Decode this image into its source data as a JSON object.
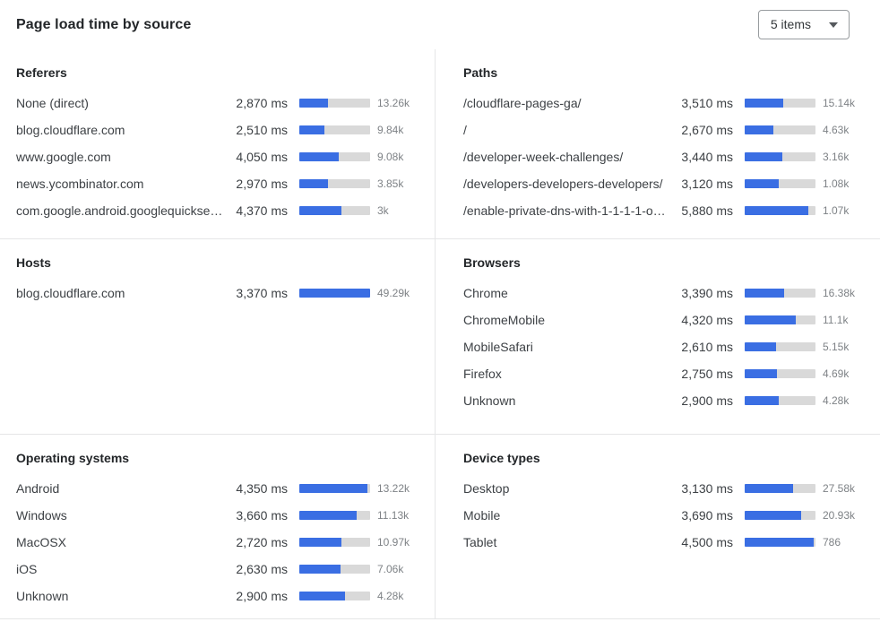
{
  "header": {
    "title": "Page load time by source",
    "items_selector": {
      "value": "5 items"
    }
  },
  "colors": {
    "bar_fill": "#3a6ee3",
    "bar_track": "#d9d9d9"
  },
  "panels": [
    {
      "id": "referers",
      "title": "Referers",
      "rows": [
        {
          "label": "None (direct)",
          "time": "2,870 ms",
          "count": "13.26k",
          "bar_pct": 40
        },
        {
          "label": "blog.cloudflare.com",
          "time": "2,510 ms",
          "count": "9.84k",
          "bar_pct": 35
        },
        {
          "label": "www.google.com",
          "time": "4,050 ms",
          "count": "9.08k",
          "bar_pct": 56
        },
        {
          "label": "news.ycombinator.com",
          "time": "2,970 ms",
          "count": "3.85k",
          "bar_pct": 41
        },
        {
          "label": "com.google.android.googlequicksearc...",
          "time": "4,370 ms",
          "count": "3k",
          "bar_pct": 60
        }
      ]
    },
    {
      "id": "paths",
      "title": "Paths",
      "rows": [
        {
          "label": "/cloudflare-pages-ga/",
          "time": "3,510 ms",
          "count": "15.14k",
          "bar_pct": 54
        },
        {
          "label": "/",
          "time": "2,670 ms",
          "count": "4.63k",
          "bar_pct": 41
        },
        {
          "label": "/developer-week-challenges/",
          "time": "3,440 ms",
          "count": "3.16k",
          "bar_pct": 53
        },
        {
          "label": "/developers-developers-developers/",
          "time": "3,120 ms",
          "count": "1.08k",
          "bar_pct": 48
        },
        {
          "label": "/enable-private-dns-with-1-1-1-1-on-...",
          "time": "5,880 ms",
          "count": "1.07k",
          "bar_pct": 90
        }
      ]
    },
    {
      "id": "hosts",
      "title": "Hosts",
      "rows": [
        {
          "label": "blog.cloudflare.com",
          "time": "3,370 ms",
          "count": "49.29k",
          "bar_pct": 100
        }
      ]
    },
    {
      "id": "browsers",
      "title": "Browsers",
      "rows": [
        {
          "label": "Chrome",
          "time": "3,390 ms",
          "count": "16.38k",
          "bar_pct": 56
        },
        {
          "label": "ChromeMobile",
          "time": "4,320 ms",
          "count": "11.1k",
          "bar_pct": 72
        },
        {
          "label": "MobileSafari",
          "time": "2,610 ms",
          "count": "5.15k",
          "bar_pct": 44
        },
        {
          "label": "Firefox",
          "time": "2,750 ms",
          "count": "4.69k",
          "bar_pct": 46
        },
        {
          "label": "Unknown",
          "time": "2,900 ms",
          "count": "4.28k",
          "bar_pct": 48
        }
      ]
    },
    {
      "id": "operating-systems",
      "title": "Operating systems",
      "rows": [
        {
          "label": "Android",
          "time": "4,350 ms",
          "count": "13.22k",
          "bar_pct": 96
        },
        {
          "label": "Windows",
          "time": "3,660 ms",
          "count": "11.13k",
          "bar_pct": 81
        },
        {
          "label": "MacOSX",
          "time": "2,720 ms",
          "count": "10.97k",
          "bar_pct": 60
        },
        {
          "label": "iOS",
          "time": "2,630 ms",
          "count": "7.06k",
          "bar_pct": 58
        },
        {
          "label": "Unknown",
          "time": "2,900 ms",
          "count": "4.28k",
          "bar_pct": 64
        }
      ]
    },
    {
      "id": "device-types",
      "title": "Device types",
      "rows": [
        {
          "label": "Desktop",
          "time": "3,130 ms",
          "count": "27.58k",
          "bar_pct": 68
        },
        {
          "label": "Mobile",
          "time": "3,690 ms",
          "count": "20.93k",
          "bar_pct": 80
        },
        {
          "label": "Tablet",
          "time": "4,500 ms",
          "count": "786",
          "bar_pct": 98
        }
      ]
    }
  ],
  "chart_data": [
    {
      "type": "bar",
      "title": "Referers",
      "categories": [
        "None (direct)",
        "blog.cloudflare.com",
        "www.google.com",
        "news.ycombinator.com",
        "com.google.android.googlequicksearc..."
      ],
      "series": [
        {
          "name": "page_load_time_ms",
          "values": [
            2870,
            2510,
            4050,
            2970,
            4370
          ]
        },
        {
          "name": "count",
          "values": [
            13260,
            9840,
            9080,
            3850,
            3000
          ]
        }
      ]
    },
    {
      "type": "bar",
      "title": "Paths",
      "categories": [
        "/cloudflare-pages-ga/",
        "/",
        "/developer-week-challenges/",
        "/developers-developers-developers/",
        "/enable-private-dns-with-1-1-1-1-on-..."
      ],
      "series": [
        {
          "name": "page_load_time_ms",
          "values": [
            3510,
            2670,
            3440,
            3120,
            5880
          ]
        },
        {
          "name": "count",
          "values": [
            15140,
            4630,
            3160,
            1080,
            1070
          ]
        }
      ]
    },
    {
      "type": "bar",
      "title": "Hosts",
      "categories": [
        "blog.cloudflare.com"
      ],
      "series": [
        {
          "name": "page_load_time_ms",
          "values": [
            3370
          ]
        },
        {
          "name": "count",
          "values": [
            49290
          ]
        }
      ]
    },
    {
      "type": "bar",
      "title": "Browsers",
      "categories": [
        "Chrome",
        "ChromeMobile",
        "MobileSafari",
        "Firefox",
        "Unknown"
      ],
      "series": [
        {
          "name": "page_load_time_ms",
          "values": [
            3390,
            4320,
            2610,
            2750,
            2900
          ]
        },
        {
          "name": "count",
          "values": [
            16380,
            11100,
            5150,
            4690,
            4280
          ]
        }
      ]
    },
    {
      "type": "bar",
      "title": "Operating systems",
      "categories": [
        "Android",
        "Windows",
        "MacOSX",
        "iOS",
        "Unknown"
      ],
      "series": [
        {
          "name": "page_load_time_ms",
          "values": [
            4350,
            3660,
            2720,
            2630,
            2900
          ]
        },
        {
          "name": "count",
          "values": [
            13220,
            11130,
            10970,
            7060,
            4280
          ]
        }
      ]
    },
    {
      "type": "bar",
      "title": "Device types",
      "categories": [
        "Desktop",
        "Mobile",
        "Tablet"
      ],
      "series": [
        {
          "name": "page_load_time_ms",
          "values": [
            3130,
            3690,
            4500
          ]
        },
        {
          "name": "count",
          "values": [
            27580,
            20930,
            786
          ]
        }
      ]
    }
  ]
}
